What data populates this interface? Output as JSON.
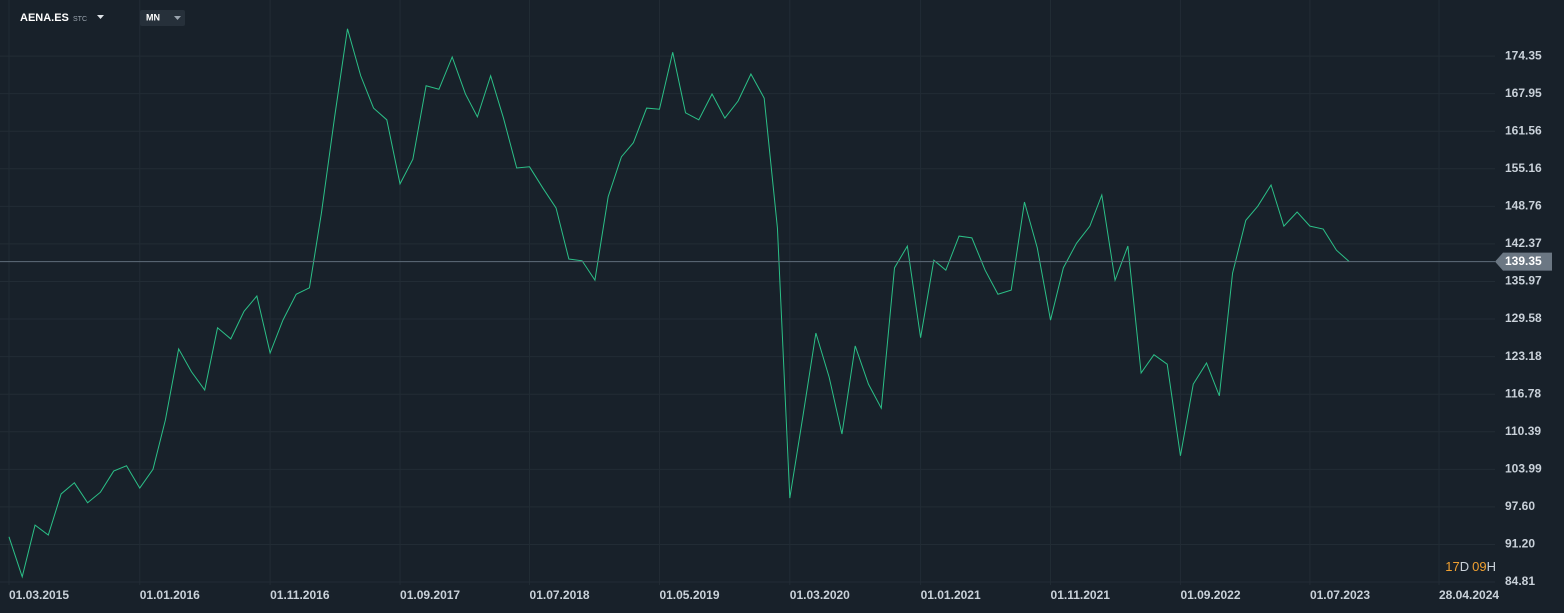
{
  "header": {
    "symbol": "AENA.ES",
    "symbol_type": "STC",
    "timeframe": "MN"
  },
  "countdown": [
    "17",
    "D",
    "09",
    "H"
  ],
  "chart_data": {
    "type": "line",
    "x": [
      "01.03.2015",
      "01.04.2015",
      "01.05.2015",
      "01.06.2015",
      "01.07.2015",
      "01.08.2015",
      "01.09.2015",
      "01.10.2015",
      "01.11.2015",
      "01.12.2015",
      "01.01.2016",
      "01.02.2016",
      "01.03.2016",
      "01.04.2016",
      "01.05.2016",
      "01.06.2016",
      "01.07.2016",
      "01.08.2016",
      "01.09.2016",
      "01.10.2016",
      "01.11.2016",
      "01.12.2016",
      "01.01.2017",
      "01.02.2017",
      "01.03.2017",
      "01.04.2017",
      "01.05.2017",
      "01.06.2017",
      "01.07.2017",
      "01.08.2017",
      "01.09.2017",
      "01.10.2017",
      "01.11.2017",
      "01.12.2017",
      "01.01.2018",
      "01.02.2018",
      "01.03.2018",
      "01.04.2018",
      "01.05.2018",
      "01.06.2018",
      "01.07.2018",
      "01.08.2018",
      "01.09.2018",
      "01.10.2018",
      "01.11.2018",
      "01.12.2018",
      "01.01.2019",
      "01.02.2019",
      "01.03.2019",
      "01.04.2019",
      "01.05.2019",
      "01.06.2019",
      "01.07.2019",
      "01.08.2019",
      "01.09.2019",
      "01.10.2019",
      "01.11.2019",
      "01.12.2019",
      "01.01.2020",
      "01.02.2020",
      "01.03.2020",
      "01.04.2020",
      "01.05.2020",
      "01.06.2020",
      "01.07.2020",
      "01.08.2020",
      "01.09.2020",
      "01.10.2020",
      "01.11.2020",
      "01.12.2020",
      "01.01.2021",
      "01.02.2021",
      "01.03.2021",
      "01.04.2021",
      "01.05.2021",
      "01.06.2021",
      "01.07.2021",
      "01.08.2021",
      "01.09.2021",
      "01.10.2021",
      "01.11.2021",
      "01.12.2021",
      "01.01.2022",
      "01.02.2022",
      "01.03.2022",
      "01.04.2022",
      "01.05.2022",
      "01.06.2022",
      "01.07.2022",
      "01.08.2022",
      "01.09.2022",
      "01.10.2022",
      "01.11.2022",
      "01.12.2022",
      "01.01.2023",
      "01.02.2023",
      "01.03.2023",
      "01.04.2023",
      "01.05.2023",
      "01.06.2023",
      "01.07.2023",
      "01.08.2023",
      "01.09.2023",
      "01.10.2023"
    ],
    "series": [
      {
        "color": "#2bbf87",
        "values": [
          92.5,
          85.7,
          94.5,
          92.8,
          99.8,
          101.7,
          98.3,
          100.1,
          103.7,
          104.6,
          100.8,
          104.0,
          112.4,
          124.5,
          120.6,
          117.5,
          128.1,
          126.2,
          130.9,
          133.5,
          123.8,
          129.4,
          133.8,
          134.9,
          147.6,
          164.0,
          179.0,
          171.0,
          165.5,
          163.5,
          152.6,
          156.8,
          169.3,
          168.7,
          174.2,
          167.9,
          164.0,
          171.0,
          163.8,
          155.3,
          155.5,
          151.9,
          148.5,
          139.8,
          139.5,
          136.2,
          150.4,
          157.2,
          159.6,
          165.5,
          165.3,
          175.0,
          164.7,
          163.5,
          167.9,
          163.8,
          166.7,
          171.3,
          167.2,
          145.1,
          99.1,
          113.2,
          127.2,
          119.7,
          110.0,
          125.0,
          118.5,
          114.4,
          138.3,
          142.0,
          126.4,
          139.6,
          137.9,
          143.7,
          143.4,
          137.9,
          133.8,
          134.5,
          149.5,
          141.7,
          129.4,
          138.3,
          142.5,
          145.4,
          150.7,
          136.2,
          142.0,
          120.4,
          123.5,
          121.9,
          106.3,
          118.5,
          122.1,
          116.5,
          137.4,
          146.4,
          148.8,
          152.4,
          145.4,
          147.8,
          145.4,
          144.9,
          141.3,
          139.35
        ]
      }
    ],
    "current_price": 139.35,
    "xlim": [
      "08.02.2015",
      "06.09.2024"
    ],
    "xticks": [
      "01.03.2015",
      "01.01.2016",
      "01.11.2016",
      "01.09.2017",
      "01.07.2018",
      "01.05.2019",
      "01.03.2020",
      "01.01.2021",
      "01.11.2021",
      "01.09.2022",
      "01.07.2023",
      "28.04.2024"
    ],
    "ylim": [
      84.3,
      183.9
    ],
    "yticks": [
      84.81,
      {
        "value": 91.2,
        "label": "91.20"
      },
      {
        "value": 97.6,
        "label": "97.60"
      },
      103.99,
      110.39,
      116.78,
      123.18,
      129.58,
      135.97,
      142.37,
      148.76,
      155.16,
      161.56,
      167.95,
      174.35
    ],
    "grid": true
  }
}
